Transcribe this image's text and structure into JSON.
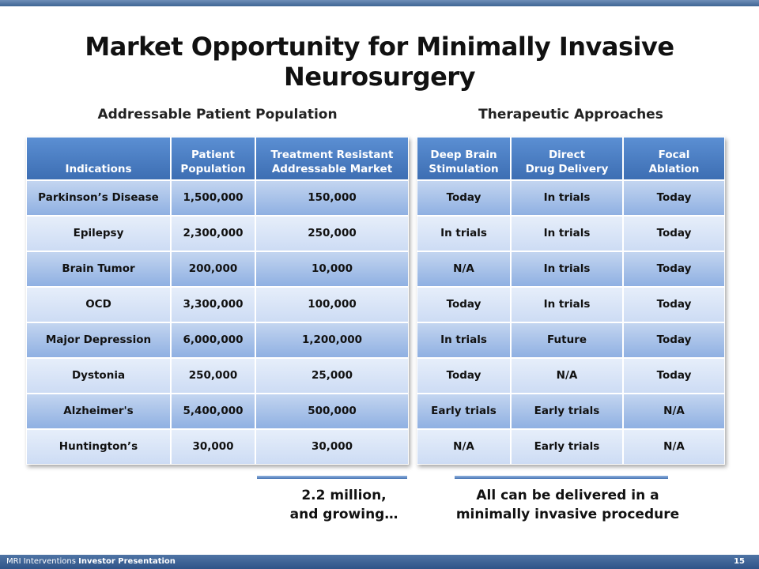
{
  "title": "Market Opportunity for Minimally Invasive Neurosurgery",
  "left": {
    "heading": "Addressable Patient Population",
    "table": {
      "header": [
        "Indications",
        "Patient\nPopulation",
        "Treatment Resistant\nAddressable Market"
      ],
      "rows": [
        [
          "Parkinson’s Disease",
          "1,500,000",
          "150,000"
        ],
        [
          "Epilepsy",
          "2,300,000",
          "250,000"
        ],
        [
          "Brain Tumor",
          "200,000",
          "10,000"
        ],
        [
          "OCD",
          "3,300,000",
          "100,000"
        ],
        [
          "Major Depression",
          "6,000,000",
          "1,200,000"
        ],
        [
          "Dystonia",
          "250,000",
          "25,000"
        ],
        [
          "Alzheimer's",
          "5,400,000",
          "500,000"
        ],
        [
          "Huntington’s",
          "30,000",
          "30,000"
        ]
      ]
    },
    "caption": "2.2 million,\nand growing…"
  },
  "right": {
    "heading": "Therapeutic Approaches",
    "table": {
      "header": [
        "Deep Brain\nStimulation",
        "Direct\nDrug Delivery",
        "Focal\nAblation"
      ],
      "rows": [
        [
          "Today",
          "In trials",
          "Today"
        ],
        [
          "In trials",
          "In trials",
          "Today"
        ],
        [
          "N/A",
          "In trials",
          "Today"
        ],
        [
          "Today",
          "In trials",
          "Today"
        ],
        [
          "In trials",
          "Future",
          "Today"
        ],
        [
          "Today",
          "N/A",
          "Today"
        ],
        [
          "Early trials",
          "Early trials",
          "N/A"
        ],
        [
          "N/A",
          "Early trials",
          "N/A"
        ]
      ]
    },
    "caption": "All can be delivered in a\nminimally invasive procedure"
  },
  "footer": {
    "company": "MRI Interventions",
    "label": "Investor Presentation",
    "page": "15"
  }
}
